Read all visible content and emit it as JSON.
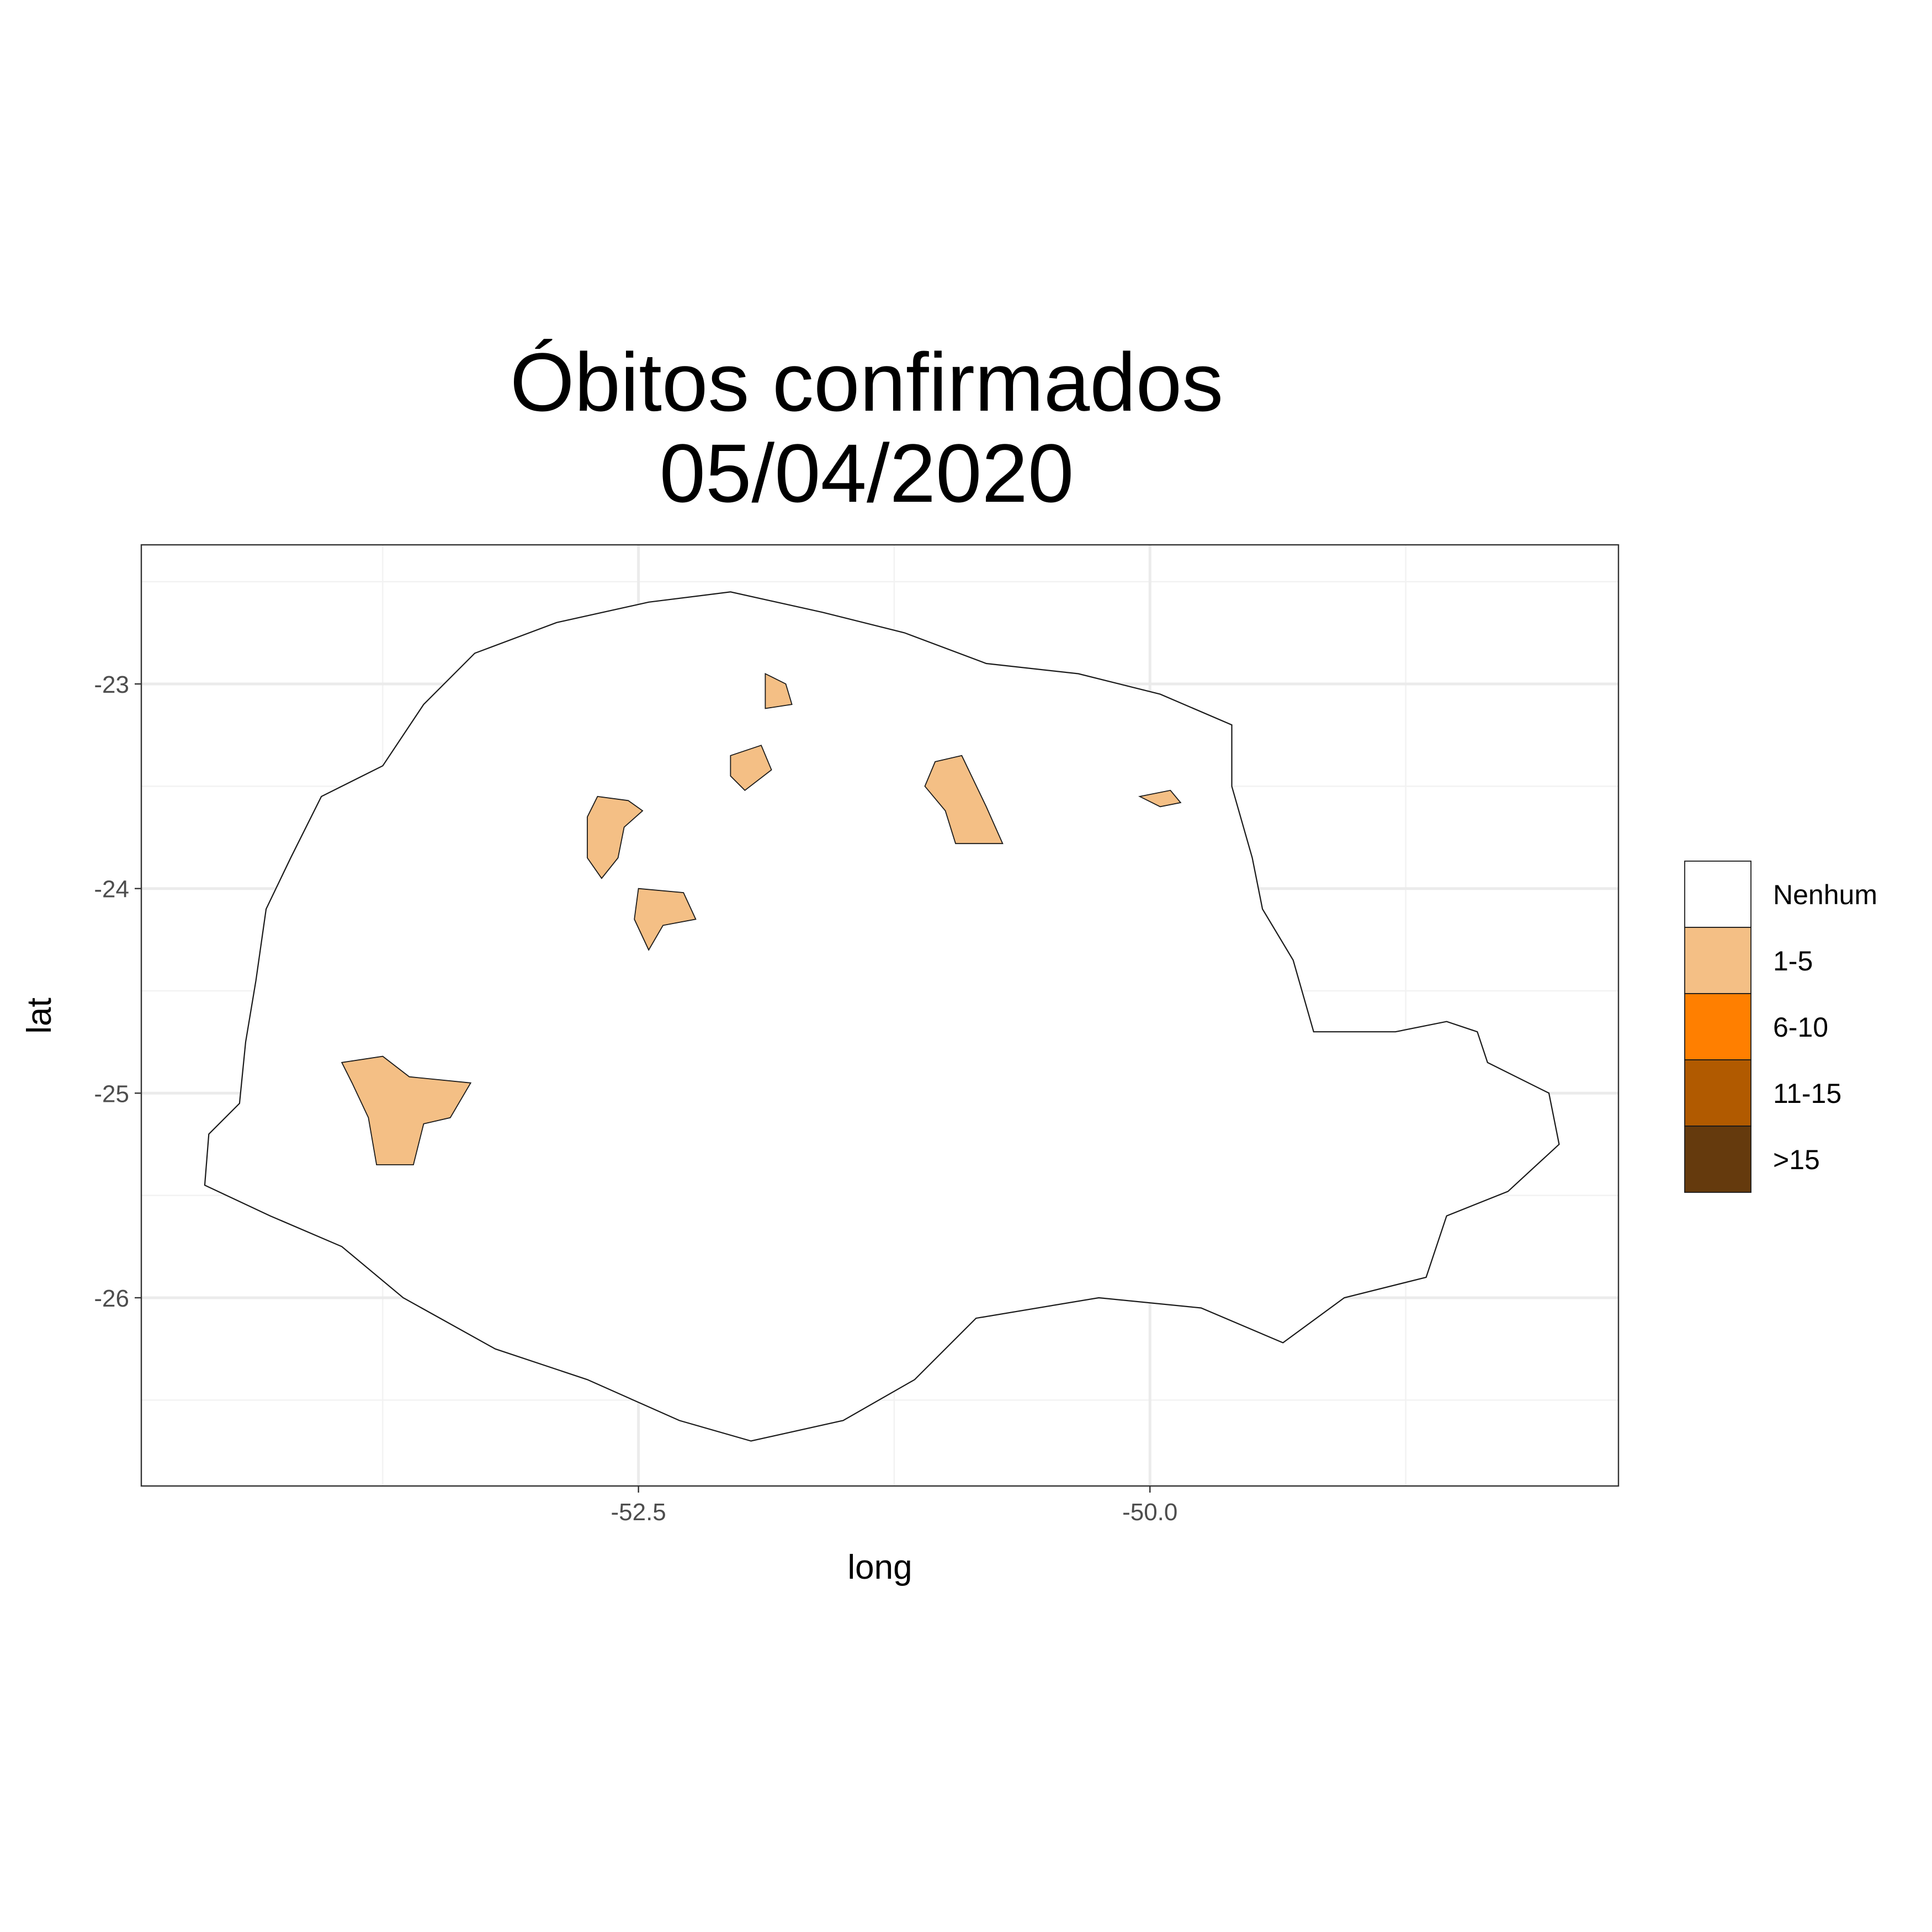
{
  "title": {
    "line1": "Óbitos confirmados",
    "line2": "05/04/2020"
  },
  "colors": {
    "nenhum": "#ffffff",
    "1-5": "#f4bf85",
    "6-10": "#ff7f00",
    "11-15": "#b15a00",
    ">15": "#653a0d",
    "outline": "#1a1a1a"
  },
  "chart_data": {
    "type": "choropleth map",
    "xlabel": "long",
    "ylabel": "lat",
    "xticks": [
      -52.5,
      -50.0
    ],
    "xtick_labels": [
      "-52.5",
      "-50.0"
    ],
    "yticks": [
      -23,
      -24,
      -25,
      -26
    ],
    "ytick_labels": [
      "-23",
      "-24",
      "-25",
      "-26"
    ],
    "xlim": [
      -54.93,
      -47.71
    ],
    "ylim": [
      -26.92,
      -22.32
    ],
    "grid": true,
    "legend": {
      "placement": "right",
      "entries": [
        "Nenhum",
        "1-5",
        "6-10",
        "11-15",
        ">15"
      ]
    },
    "highlighted_regions": [
      {
        "category": "1-5",
        "centroid": [
          -53.65,
          -25.05
        ]
      },
      {
        "category": "1-5",
        "centroid": [
          -52.62,
          -23.75
        ]
      },
      {
        "category": "1-5",
        "centroid": [
          -52.38,
          -24.12
        ]
      },
      {
        "category": "1-5",
        "centroid": [
          -51.95,
          -23.42
        ]
      },
      {
        "category": "1-5",
        "centroid": [
          -51.82,
          -23.05
        ]
      },
      {
        "category": "1-5",
        "centroid": [
          -50.95,
          -23.62
        ]
      },
      {
        "category": "1-5",
        "centroid": [
          -49.95,
          -23.55
        ]
      }
    ]
  }
}
